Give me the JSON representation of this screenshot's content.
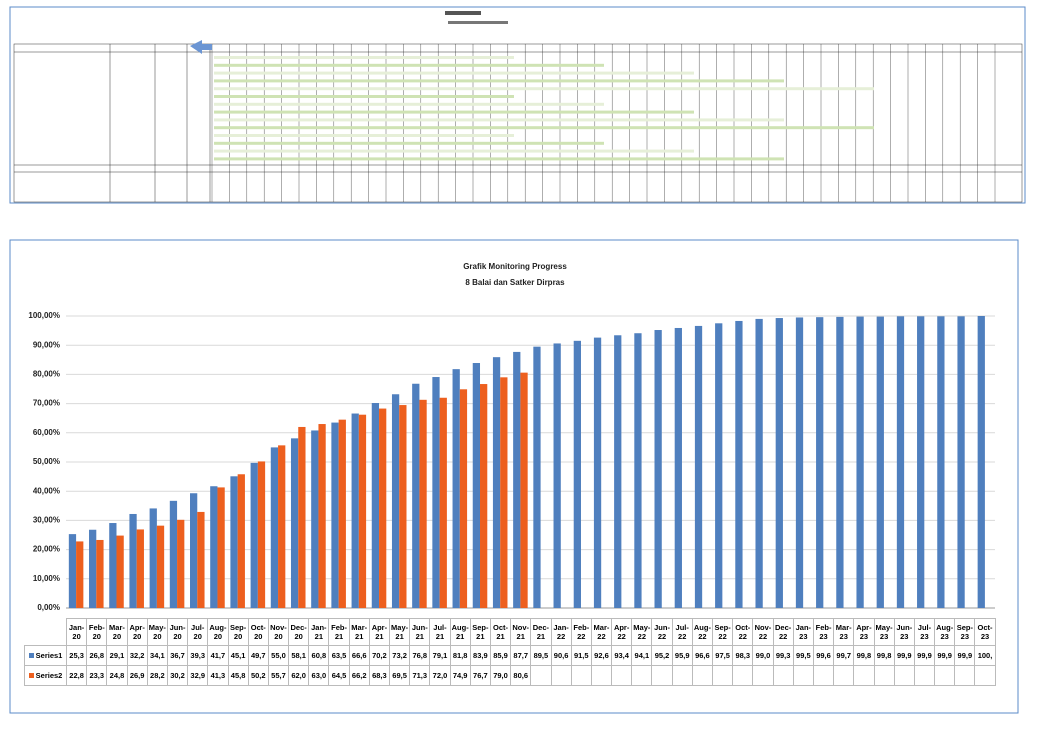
{
  "chart_data": {
    "type": "bar",
    "title": "Grafik Monitoring Progress",
    "subtitle": "8 Balai dan Satker Dirpras",
    "categories": [
      "Jan-20",
      "Feb-20",
      "Mar-20",
      "Apr-20",
      "May-20",
      "Jun-20",
      "Jul-20",
      "Aug-20",
      "Sep-20",
      "Oct-20",
      "Nov-20",
      "Dec-20",
      "Jan-21",
      "Feb-21",
      "Mar-21",
      "Apr-21",
      "May-21",
      "Jun-21",
      "Jul-21",
      "Aug-21",
      "Sep-21",
      "Oct-21",
      "Nov-21",
      "Dec-21",
      "Jan-22",
      "Feb-22",
      "Mar-22",
      "Apr-22",
      "May-22",
      "Jun-22",
      "Jul-22",
      "Aug-22",
      "Sep-22",
      "Oct-22",
      "Nov-22",
      "Dec-22",
      "Jan-23",
      "Feb-23",
      "Mar-23",
      "Apr-23",
      "May-23",
      "Jun-23",
      "Jul-23",
      "Aug-23",
      "Sep-23",
      "Oct-23"
    ],
    "series": [
      {
        "name": "Series1",
        "color": "#4f7fbe",
        "values": [
          25.3,
          26.8,
          29.1,
          32.2,
          34.1,
          36.7,
          39.3,
          41.7,
          45.1,
          49.7,
          55.0,
          58.1,
          60.8,
          63.5,
          66.6,
          70.2,
          73.2,
          76.8,
          79.1,
          81.8,
          83.9,
          85.9,
          87.7,
          89.5,
          90.6,
          91.5,
          92.6,
          93.4,
          94.1,
          95.2,
          95.9,
          96.6,
          97.5,
          98.3,
          99.0,
          99.3,
          99.5,
          99.6,
          99.7,
          99.8,
          99.8,
          99.9,
          99.9,
          99.9,
          99.9,
          100
        ],
        "value_labels": [
          "25,3",
          "26,8",
          "29,1",
          "32,2",
          "34,1",
          "36,7",
          "39,3",
          "41,7",
          "45,1",
          "49,7",
          "55,0",
          "58,1",
          "60,8",
          "63,5",
          "66,6",
          "70,2",
          "73,2",
          "76,8",
          "79,1",
          "81,8",
          "83,9",
          "85,9",
          "87,7",
          "89,5",
          "90,6",
          "91,5",
          "92,6",
          "93,4",
          "94,1",
          "95,2",
          "95,9",
          "96,6",
          "97,5",
          "98,3",
          "99,0",
          "99,3",
          "99,5",
          "99,6",
          "99,7",
          "99,8",
          "99,8",
          "99,9",
          "99,9",
          "99,9",
          "99,9",
          "100,"
        ]
      },
      {
        "name": "Series2",
        "color": "#ed5f1e",
        "values": [
          22.8,
          23.3,
          24.8,
          26.9,
          28.2,
          30.2,
          32.9,
          41.3,
          45.8,
          50.2,
          55.7,
          62.0,
          63.0,
          64.5,
          66.2,
          68.3,
          69.5,
          71.3,
          72.0,
          74.9,
          76.7,
          79.0,
          80.6,
          null,
          null,
          null,
          null,
          null,
          null,
          null,
          null,
          null,
          null,
          null,
          null,
          null,
          null,
          null,
          null,
          null,
          null,
          null,
          null,
          null,
          null,
          null
        ],
        "value_labels": [
          "22,8",
          "23,3",
          "24,8",
          "26,9",
          "28,2",
          "30,2",
          "32,9",
          "41,3",
          "45,8",
          "50,2",
          "55,7",
          "62,0",
          "63,0",
          "64,5",
          "66,2",
          "68,3",
          "69,5",
          "71,3",
          "72,0",
          "74,9",
          "76,7",
          "79,0",
          "80,6",
          null,
          null,
          null,
          null,
          null,
          null,
          null,
          null,
          null,
          null,
          null,
          null,
          null,
          null,
          null,
          null,
          null,
          null,
          null,
          null,
          null,
          null,
          null
        ]
      }
    ],
    "ylim": [
      0,
      100
    ],
    "yticks": [
      {
        "value": 0,
        "label": "0,00%"
      },
      {
        "value": 10,
        "label": "10,00%"
      },
      {
        "value": 20,
        "label": "20,00%"
      },
      {
        "value": 30,
        "label": "30,00%"
      },
      {
        "value": 40,
        "label": "40,00%"
      },
      {
        "value": 50,
        "label": "50,00%"
      },
      {
        "value": 60,
        "label": "60,00%"
      },
      {
        "value": 70,
        "label": "70,00%"
      },
      {
        "value": 80,
        "label": "80,00%"
      },
      {
        "value": 90,
        "label": "90,00%"
      },
      {
        "value": 100,
        "label": "100,00%"
      }
    ],
    "grid": true
  }
}
